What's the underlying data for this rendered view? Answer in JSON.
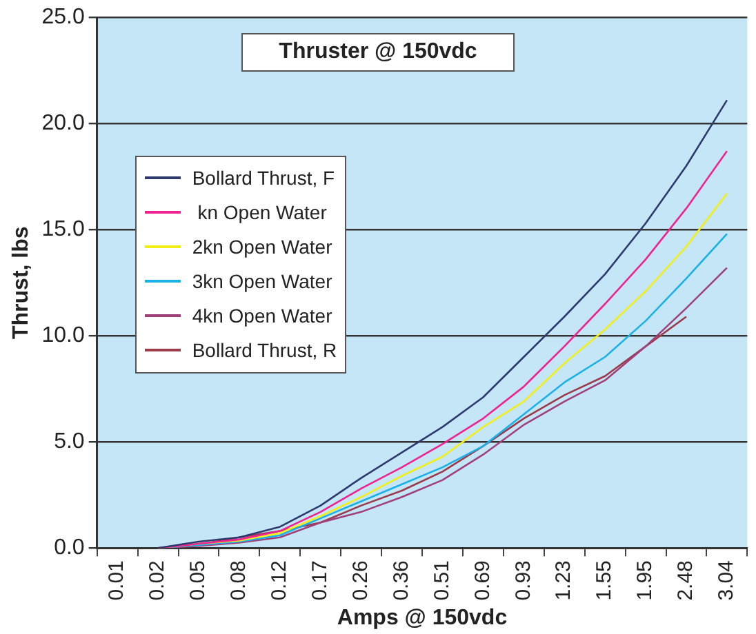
{
  "chart_data": {
    "type": "line",
    "title": "Thruster @ 150vdc",
    "xlabel": "Amps @ 150vdc",
    "ylabel": "Thrust, lbs",
    "categories": [
      "0.01",
      "0.02",
      "0.05",
      "0.08",
      "0.12",
      "0.17",
      "0.26",
      "0.36",
      "0.51",
      "0.69",
      "0.93",
      "1.23",
      "1.55",
      "1.95",
      "2.48",
      "3.04"
    ],
    "series": [
      {
        "name": "Bollard Thrust, F",
        "color": "#2e3a6e",
        "values": [
          null,
          0,
          0.3,
          0.5,
          1.0,
          2.0,
          3.3,
          4.5,
          5.7,
          7.1,
          9.0,
          10.9,
          12.9,
          15.3,
          18.0,
          21.1
        ]
      },
      {
        "name": " kn Open Water",
        "color": "#ee2290",
        "values": [
          null,
          0,
          0.2,
          0.4,
          0.8,
          1.7,
          2.8,
          3.8,
          4.9,
          6.1,
          7.6,
          9.5,
          11.5,
          13.6,
          16.0,
          18.7
        ]
      },
      {
        "name": "2kn Open Water",
        "color": "#f2ee1a",
        "values": [
          null,
          0,
          0.2,
          0.35,
          0.7,
          1.5,
          2.4,
          3.4,
          4.3,
          5.7,
          6.9,
          8.7,
          10.3,
          12.1,
          14.2,
          16.7
        ]
      },
      {
        "name": "3kn Open Water",
        "color": "#1ab0e8",
        "values": [
          null,
          0,
          0.15,
          0.3,
          0.6,
          1.4,
          2.2,
          3.0,
          3.8,
          4.8,
          6.3,
          7.8,
          9.0,
          10.7,
          12.7,
          14.8
        ]
      },
      {
        "name": "4kn Open Water",
        "color": "#a0407a",
        "values": [
          null,
          0,
          0.1,
          0.25,
          0.5,
          1.2,
          1.7,
          2.4,
          3.2,
          4.4,
          5.8,
          6.9,
          7.9,
          9.5,
          11.3,
          13.2
        ]
      },
      {
        "name": "Bollard Thrust, R",
        "color": "#9a3a4a",
        "values": [
          null,
          0,
          0.15,
          0.5,
          0.8,
          1.2,
          2.0,
          2.7,
          3.6,
          4.8,
          6.1,
          7.2,
          8.1,
          9.5,
          10.9,
          null
        ]
      }
    ],
    "ylim": [
      0,
      25
    ],
    "yticks": [
      {
        "value": 0,
        "label": "0.0"
      },
      {
        "value": 5,
        "label": "5.0"
      },
      {
        "value": 10,
        "label": "10.0"
      },
      {
        "value": 15,
        "label": "15.0"
      },
      {
        "value": 20,
        "label": "20.0"
      },
      {
        "value": 25,
        "label": "25.0"
      }
    ],
    "grid": "y",
    "legend": "left",
    "marker": "none",
    "line_style": "solid"
  }
}
